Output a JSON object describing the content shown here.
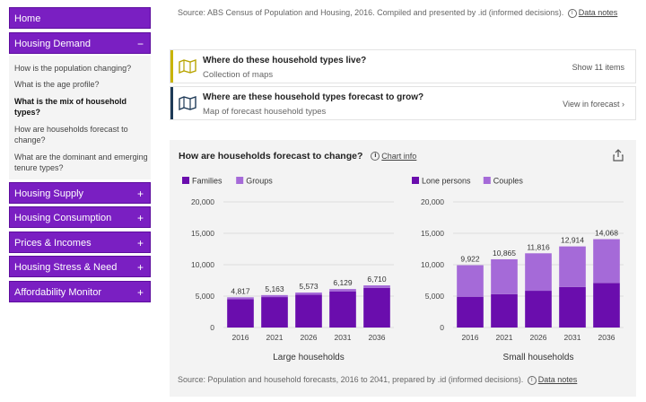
{
  "sidebar": {
    "home": "Home",
    "housing_demand": "Housing Demand",
    "housing_demand_sign": "−",
    "subnav": [
      "How is the population changing?",
      "What is the age profile?",
      "What is the mix of household types?",
      "How are households forecast to change?",
      "What are the dominant and emerging tenure types?"
    ],
    "sections": [
      {
        "label": "Housing Supply",
        "sign": "+"
      },
      {
        "label": "Housing Consumption",
        "sign": "+"
      },
      {
        "label": "Prices & Incomes",
        "sign": "+"
      },
      {
        "label": "Housing Stress & Need",
        "sign": "+"
      },
      {
        "label": "Affordability Monitor",
        "sign": "+"
      }
    ]
  },
  "top_source": {
    "text": "Source: ABS Census of Population and Housing, 2016. Compiled and presented by .id (informed decisions).",
    "info": "i",
    "link": "Data notes"
  },
  "cards": [
    {
      "title": "Where do these household types live?",
      "sub": "Collection of maps",
      "action": "Show 11 items",
      "accent": "#c8b400"
    },
    {
      "title": "Where are these household types forecast to grow?",
      "sub": "Map of forecast household types",
      "action": "View in forecast  ›",
      "accent": "#1e3a57"
    }
  ],
  "panel": {
    "title": "How are households forecast to change?",
    "info": "i",
    "chart_info": "Chart info",
    "share_icon": "share-icon"
  },
  "colors": {
    "dark": "#6a0dad",
    "light": "#a56ad8",
    "nav": "#7a1fc2"
  },
  "chart_data": [
    {
      "type": "bar",
      "stacked": true,
      "xlabel": "Large households",
      "categories": [
        "2016",
        "2021",
        "2026",
        "2031",
        "2036"
      ],
      "ylim": [
        0,
        20000
      ],
      "yticks": [
        "0",
        "5,000",
        "10,000",
        "15,000",
        "20,000"
      ],
      "series": [
        {
          "name": "Families",
          "values": [
            4517,
            4848,
            5233,
            5759,
            6315
          ]
        },
        {
          "name": "Groups",
          "values": [
            300,
            315,
            340,
            370,
            395
          ]
        }
      ],
      "totals": [
        4817,
        5163,
        5573,
        6129,
        6710
      ],
      "total_labels": [
        "4,817",
        "5,163",
        "5,573",
        "6,129",
        "6,710"
      ]
    },
    {
      "type": "bar",
      "stacked": true,
      "xlabel": "Small households",
      "categories": [
        "2016",
        "2021",
        "2026",
        "2031",
        "2036"
      ],
      "ylim": [
        0,
        20000
      ],
      "yticks": [
        "0",
        "5,000",
        "10,000",
        "15,000",
        "20,000"
      ],
      "series": [
        {
          "name": "Lone persons",
          "values": [
            4900,
            5300,
            5850,
            6450,
            7100
          ]
        },
        {
          "name": "Couples",
          "values": [
            5022,
            5565,
            5966,
            6464,
            6968
          ]
        }
      ],
      "totals": [
        9922,
        10865,
        11816,
        12914,
        14068
      ],
      "total_labels": [
        "9,922",
        "10,865",
        "11,816",
        "12,914",
        "14,068"
      ]
    }
  ],
  "bottom_source": {
    "text": "Source: Population and household forecasts, 2016 to 2041, prepared by .id (informed decisions).",
    "info": "i",
    "link": "Data notes"
  }
}
